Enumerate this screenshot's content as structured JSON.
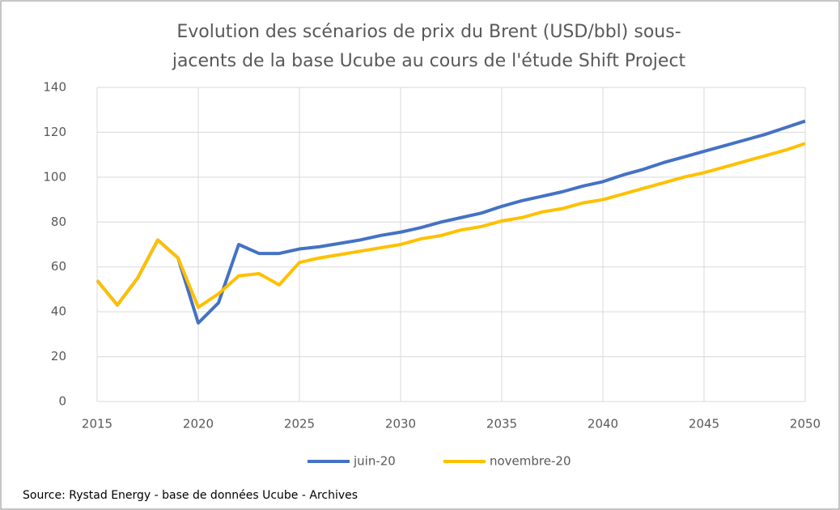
{
  "chart_data": {
    "type": "line",
    "title": [
      "Evolution des scénarios de prix du Brent (USD/bbl) sous-",
      "jacents de la base Ucube au cours de l'étude Shift Project"
    ],
    "source": "Source: Rystad Energy - base de données Ucube - Archives",
    "x": [
      2015,
      2016,
      2017,
      2018,
      2019,
      2020,
      2021,
      2022,
      2023,
      2024,
      2025,
      2026,
      2027,
      2028,
      2029,
      2030,
      2031,
      2032,
      2033,
      2034,
      2035,
      2036,
      2037,
      2038,
      2039,
      2040,
      2041,
      2042,
      2043,
      2044,
      2045,
      2046,
      2047,
      2048,
      2049,
      2050
    ],
    "series": [
      {
        "name": "juin-20",
        "color": "#4472c4",
        "values": [
          54,
          43,
          55,
          72,
          64,
          35,
          44,
          70,
          66,
          66,
          68,
          69,
          70.5,
          72,
          74,
          75.5,
          77.5,
          80,
          82,
          84,
          87,
          89.5,
          91.5,
          93.5,
          96,
          98,
          101,
          103.5,
          106.5,
          109,
          111.5,
          114,
          116.5,
          119,
          122,
          125
        ]
      },
      {
        "name": "novembre-20",
        "color": "#ffc000",
        "values": [
          54,
          43,
          55,
          72,
          64,
          42,
          48,
          56,
          57,
          52,
          62,
          64,
          65.5,
          67,
          68.5,
          70,
          72.5,
          74,
          76.5,
          78,
          80.5,
          82,
          84.5,
          86,
          88.5,
          90,
          92.5,
          95,
          97.5,
          100,
          102,
          104.5,
          107,
          109.5,
          112,
          115
        ]
      }
    ],
    "xlim": [
      2015,
      2050
    ],
    "xticks": [
      2015,
      2020,
      2025,
      2030,
      2035,
      2040,
      2045,
      2050
    ],
    "ylim": [
      0,
      140
    ],
    "yticks": [
      0,
      20,
      40,
      60,
      80,
      100,
      120,
      140
    ],
    "grid": true,
    "legend": "bottom"
  }
}
